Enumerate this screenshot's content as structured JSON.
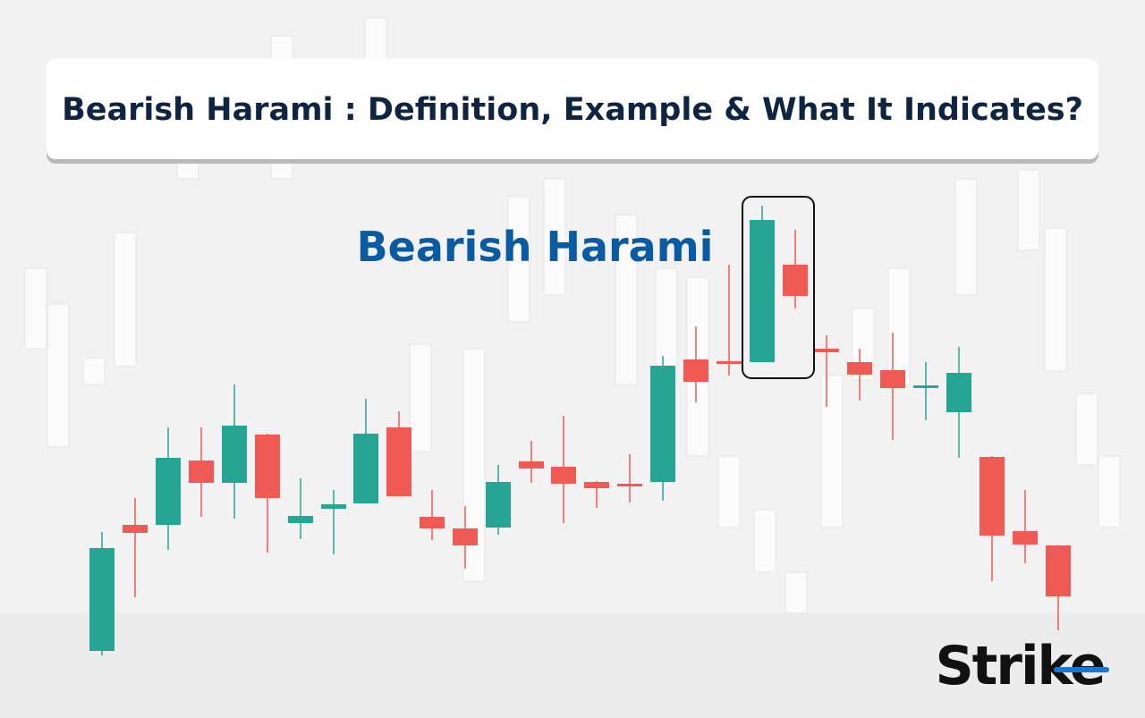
{
  "header": {
    "title": "Bearish Harami : Definition, Example & What It Indicates?"
  },
  "pattern_label": "Bearish Harami",
  "logo": "Strike"
}
